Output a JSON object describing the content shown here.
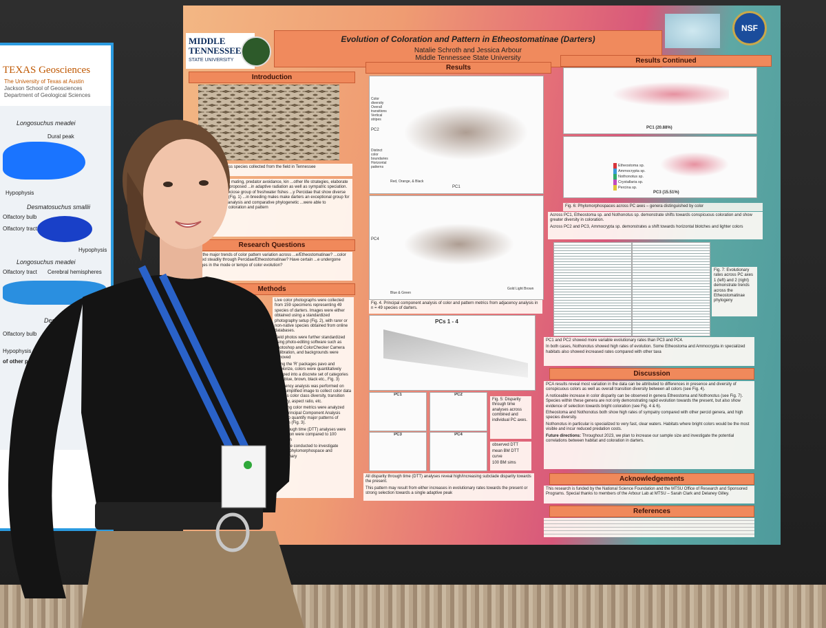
{
  "main_poster": {
    "logo": {
      "line1": "MIDDLE",
      "line2": "TENNESSEE",
      "line3": "STATE UNIVERSITY"
    },
    "nsf": "NSF",
    "title": "Evolution of Coloration and Pattern in Etheostomatinae (Darters)",
    "authors": "Natalie Schroth and Jessica Arbour",
    "affiliation": "Middle Tennessee State University",
    "introduction": {
      "heading": "Introduction",
      "caption": "...ter coloration across species collected from the field in Tennessee",
      "text": "...ated to nonrandom mating, predator avoidance, kin ...other life strategies, elaborate coloration has been proposed ...in adaptive radiation as well as sympatric speciation. ...matinae) are a speciose group of freshwater fishes ...y Percidae that show diverse colors and patterns (Fig. 1) ...in breeding males make darters an exceptional group for ...lopments in color analysis and comparative phylogenetic ...were able to quantitatively study coloration and pattern"
    },
    "research_questions": {
      "heading": "Research Questions",
      "text": "...are the major trends of color pattern variation across ...e/Etheostomatinae? ...color evolved steadily through Percidae/Etheostomatinae? Have certain ...e undergone changes in the mode or tempo of color evolution?"
    },
    "methods": {
      "heading": "Methods",
      "bullets": [
        "Live color photographs were collected from 159 specimens representing 49 species of darters. Images were either obtained using a standardized photography setup (Fig. 2), with rarer or non-native species obtained from online databases.",
        "Field photos were further standardized using photo-editing software such as Photoshop and ColorChecker Camera Calibration, and backgrounds were removed",
        "Using the 'R' packages pavo and recolorize, colors were quantitatively grouped into a discrete set of categories (red, blue, brown, black etc., Fig. 3)",
        "Adjacency analysis was performed on each simplified image to collect color data such as color class diversity, transition diversity, aspect ratio, etc.",
        "Resulting color metrics were analyzed using Principal Component Analysis (PCA) to quantify major patterns of variation (Fig. 3).",
        "...ity through time (DTT) analyses were ran ...ution were compared to 100 Brownian",
        "...es were conducted to investigate ...nding phylomorphospace and evolutionary"
      ]
    },
    "results": {
      "heading": "Results",
      "pca_axis": {
        "pc1": "PC1",
        "pc2": "PC2",
        "pc4": "PC4",
        "left_top": "Color diversity Overall transitions Vertical stripes",
        "left_bottom": "Distinct color boundaries Horizontal patterns",
        "bottom_left": "Red, Orange, & Black",
        "bottom_right": "Blue & Green",
        "gold": "Gold Light Brown"
      },
      "fig4": "Fig. 4. Principal component analysis of color and pattern metrics from adjacency analysis in n = 49 species of darters.",
      "dtt_title": "PCs 1 - 4",
      "dtt_panels": [
        "PC1",
        "PC2",
        "PC3",
        "PC4"
      ],
      "fig5": "Fig. 5: Disparity through time analyses across combined and individual PC axes.",
      "legend": [
        "observed DTT",
        "mean BM DTT curve",
        "100 BM sims"
      ],
      "bullets": [
        "All disparity through time (DTT) analyses reveal high/increasing subclade disparity towards the present.",
        "This pattern may result from either increases in evolutionary rates towards the present or strong selection towards a single adaptive peak"
      ]
    },
    "results_continued": {
      "heading": "Results Continued",
      "axes": [
        "PC1 (20.88%)",
        "PC3 (15.51%)"
      ],
      "legend": [
        "Etheostoma sp.",
        "Ammocrypta sp.",
        "Nothonotus sp.",
        "Crystallaria sp.",
        "Percina sp."
      ],
      "fig6": "Fig. 6: Phylomorphospaces across PC axes – genera distinguished by color",
      "bullets1": [
        "Across PC1, Etheostoma sp. and Nothonotus sp. demonstrate shifts towards conspicuous coloration and show greater diversity in coloration.",
        "Across PC2 and PC3, Ammocrypta sp. demonstrates a shift towards horizontal blotches and lighter colors"
      ],
      "fig7": "Fig. 7: Evolutionary rates across PC axes 1 (left) and 2 (right) demonstrate trends across the Etheostomatinae phylogeny",
      "bullets2": [
        "PC1 and PC2 showed more variable evolutionary rates than PC3 and PC4.",
        "In both cases, Nothonotus showed high rates of evolution. Some Etheostoma and Ammocrypta in specialized habitats also showed increased rates compared with other taxa"
      ]
    },
    "discussion": {
      "heading": "Discussion",
      "bullets": [
        "PCA results reveal most variation in the data can be attributed to differences in presence and diversity of conspicuous colors as well as overall transition diversity between all colors (see Fig. 4).",
        "A noticeable increase in color disparity can be observed in genera Etheostoma and Nothonotus (see Fig. 7). Species within these genera are not only demonstrating rapid evolution towards the present, but also show evidence of selection towards bright coloration (see Fig. 4 & 6).",
        "Etheostoma and Nothonotus both show high rates of sympatry compared with other percid genera, and high species diversity.",
        "Nothonotus in particular is specialized to very fast, clear waters. Habitats where bright colors would be the most visible and incur reduced predation costs."
      ],
      "future_label": "Future directions:",
      "future": "Throughout 2023, we plan to increase our sample size and investigate the potential correlations between habitat and coloration in darters."
    },
    "acknowledgements": {
      "heading": "Acknowledgements",
      "text": "This research is funded by the National Science Foundation and the MTSU Office of Research and Sponsored Programs. Special thanks to members of the Arbour Lab at MTSU – Sarah Clark and Delaney Gilley."
    },
    "references": {
      "heading": "References"
    }
  },
  "left_poster": {
    "brand": "TEXAS Geosciences",
    "university": "The University of Texas at Austin",
    "school": "Jackson School of Geosciences",
    "department": "Department of Geological Sciences",
    "labels": [
      "Longosuchus meadei",
      "Dural peak",
      "Hypophysis",
      "Desmatosuchus smallii",
      "Olfactory bulb",
      "Olfactory tract",
      "Hypophysis",
      "Longosuchus meadei",
      "Olfactory tract",
      "Cerebral hemispheres",
      "Desmatosu",
      "Olfactory bulb",
      "Hypophysis",
      "of other published"
    ]
  }
}
